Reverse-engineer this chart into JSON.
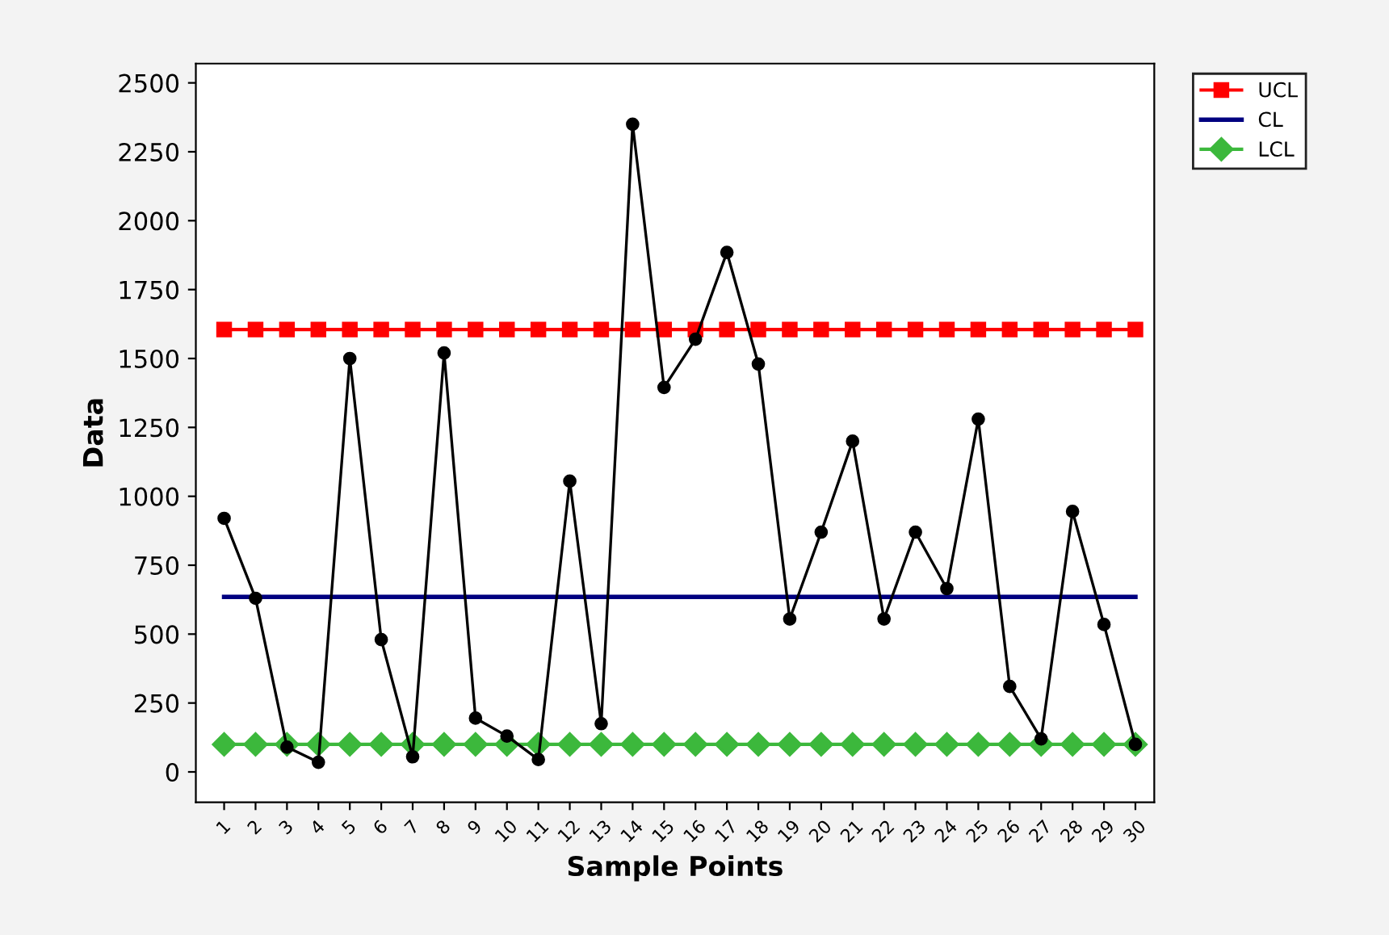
{
  "chart_data": {
    "type": "line",
    "xlabel": "Sample Points",
    "ylabel": "Data",
    "categories": [
      "1",
      "2",
      "3",
      "4",
      "5",
      "6",
      "7",
      "8",
      "9",
      "10",
      "11",
      "12",
      "13",
      "14",
      "15",
      "16",
      "17",
      "18",
      "19",
      "20",
      "21",
      "22",
      "23",
      "24",
      "25",
      "26",
      "27",
      "28",
      "29",
      "30"
    ],
    "series": [
      {
        "color": "#000000",
        "marker": "circle",
        "values": [
          920,
          630,
          90,
          35,
          1500,
          480,
          55,
          1520,
          195,
          130,
          45,
          1055,
          175,
          2350,
          1395,
          1570,
          1885,
          1480,
          555,
          870,
          1200,
          555,
          870,
          665,
          1280,
          310,
          120,
          945,
          535,
          100
        ]
      },
      {
        "name": "UCL",
        "color": "#ff0000",
        "marker": "square",
        "values": [
          1605,
          1605,
          1605,
          1605,
          1605,
          1605,
          1605,
          1605,
          1605,
          1605,
          1605,
          1605,
          1605,
          1605,
          1605,
          1605,
          1605,
          1605,
          1605,
          1605,
          1605,
          1605,
          1605,
          1605,
          1605,
          1605,
          1605,
          1605,
          1605,
          1605
        ]
      },
      {
        "name": "CL",
        "color": "#000080",
        "marker": "none",
        "values": [
          635,
          635,
          635,
          635,
          635,
          635,
          635,
          635,
          635,
          635,
          635,
          635,
          635,
          635,
          635,
          635,
          635,
          635,
          635,
          635,
          635,
          635,
          635,
          635,
          635,
          635,
          635,
          635,
          635,
          635
        ]
      },
      {
        "name": "LCL",
        "color": "#3cb83c",
        "marker": "diamond",
        "values": [
          100,
          100,
          100,
          100,
          100,
          100,
          100,
          100,
          100,
          100,
          100,
          100,
          100,
          100,
          100,
          100,
          100,
          100,
          100,
          100,
          100,
          100,
          100,
          100,
          100,
          100,
          100,
          100,
          100,
          100
        ]
      }
    ],
    "ylim": [
      -110,
      2570
    ],
    "yticks": [
      0,
      250,
      500,
      750,
      1000,
      1250,
      1500,
      1750,
      2000,
      2250,
      2500
    ],
    "grid": false,
    "legend": "top right"
  }
}
